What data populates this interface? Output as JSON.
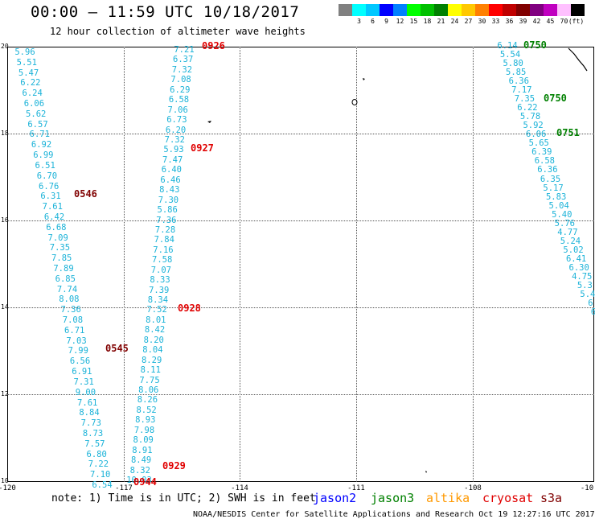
{
  "title": "00:00 – 11:59 UTC 10/18/2017",
  "subtitle": "12 hour collection of altimeter wave heights",
  "legend": {
    "colors": [
      "#808080",
      "#00ffff",
      "#00c8ff",
      "#0000ff",
      "#0080ff",
      "#00ff00",
      "#00c000",
      "#008000",
      "#ffff00",
      "#ffc800",
      "#ff8000",
      "#ff0000",
      "#c00000",
      "#800000",
      "#800080",
      "#c000c0",
      "#ffc0ff",
      "#000000"
    ],
    "labels": [
      "3",
      "6",
      "9",
      "12",
      "15",
      "18",
      "21",
      "24",
      "27",
      "30",
      "33",
      "36",
      "39",
      "42",
      "45",
      "70"
    ],
    "units": "(ft)"
  },
  "axes": {
    "y_labels": [
      "20",
      "18",
      "16",
      "14",
      "12",
      "10"
    ],
    "x_labels": [
      "-120",
      "-117",
      "-114",
      "-111",
      "-108",
      "-10"
    ]
  },
  "track_color": "#1ab2d8",
  "tracks": [
    {
      "values": [
        "5.96",
        "5.51",
        "5.47",
        "6.22",
        "6.24",
        "6.06",
        "5.62",
        "6.57",
        "6.71",
        "6.92",
        "6.99",
        "6.51",
        "6.70",
        "6.76",
        "6.31",
        "7.61",
        "6.42",
        "6.68",
        "7.09",
        "7.35",
        "7.85",
        "7.89",
        "6.85",
        "7.74",
        "8.08",
        "7.36",
        "7.08",
        "6.71",
        "7.03",
        "7.99",
        "6.56",
        "6.91",
        "7.31",
        "9.00",
        "7.61",
        "8.84",
        "7.73",
        "8.73",
        "7.57",
        "6.80",
        "7.22",
        "7.10",
        "6.54"
      ]
    },
    {
      "values": [
        "7.21",
        "6.37",
        "7.32",
        "7.08",
        "6.29",
        "6.58",
        "7.06",
        "6.73",
        "6.20",
        "7.32",
        "5.93",
        "7.47",
        "6.40",
        "6.46",
        "8.43",
        "7.30",
        "5.86",
        "7.36",
        "7.28",
        "7.84",
        "7.16",
        "7.58",
        "7.07",
        "8.33",
        "7.39",
        "8.34",
        "7.52",
        "8.01",
        "8.42",
        "8.20",
        "8.04",
        "8.29",
        "8.11",
        "7.75",
        "8.06",
        "8.26",
        "8.52",
        "8.93",
        "7.98",
        "8.09",
        "8.91",
        "8.49",
        "8.32",
        "10.03"
      ]
    },
    {
      "values": [
        "6.14",
        "5.54",
        "5.80",
        "5.85",
        "6.36",
        "7.17",
        "7.35",
        "6.22",
        "5.78",
        "5.92",
        "6.06",
        "5.65",
        "6.39",
        "6.58",
        "6.36",
        "6.35",
        "5.17",
        "5.83",
        "5.04",
        "5.40",
        "5.76",
        "4.77",
        "5.24",
        "5.02",
        "6.41",
        "6.30",
        "4.75",
        "5.3",
        "5.4",
        "6",
        "6"
      ]
    }
  ],
  "time_labels": [
    {
      "text": "0926",
      "color": "#e00000"
    },
    {
      "text": "0927",
      "color": "#e00000"
    },
    {
      "text": "0928",
      "color": "#e00000"
    },
    {
      "text": "0929",
      "color": "#e00000"
    },
    {
      "text": "0944",
      "color": "#e00000"
    },
    {
      "text": "0546",
      "color": "#800000"
    },
    {
      "text": "0545",
      "color": "#800000"
    },
    {
      "text": "0750",
      "color": "#008000"
    },
    {
      "text": "0750",
      "color": "#008000"
    },
    {
      "text": "0751",
      "color": "#008000"
    }
  ],
  "note": "note: 1) Time is in UTC; 2) SWH is in feet",
  "satellites": [
    {
      "name": "jason2",
      "color": "#0000ff"
    },
    {
      "name": "jason3",
      "color": "#008000"
    },
    {
      "name": "altika",
      "color": "#ff9900"
    },
    {
      "name": "cryosat",
      "color": "#e00000"
    },
    {
      "name": "s3a",
      "color": "#800000"
    }
  ],
  "footer": "NOAA/NESDIS Center for Satellite Applications and Research   Oct 19 12:27:16 UTC 2017"
}
